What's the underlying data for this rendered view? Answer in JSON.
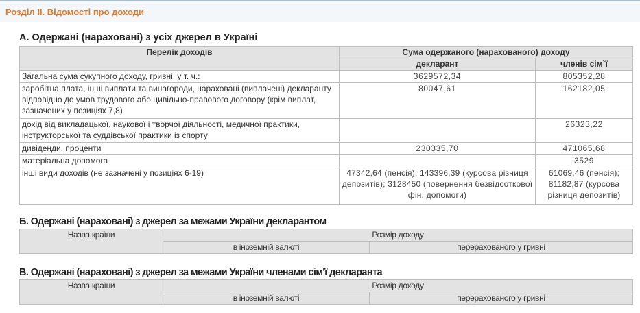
{
  "section_title": "Розділ ІІ. Відомості про доходи",
  "part_a": {
    "title": "А. Одержані (нараховані) з усіх джерел в Україні",
    "headers": {
      "list": "Перелік доходів",
      "sum": "Сума одержаного (нарахованого) доходу",
      "declarant": "декларант",
      "family": "членів сім`ї"
    },
    "rows": [
      {
        "label": "Загальна сума сукупного доходу, гривні, у т. ч.:",
        "declarant": "3629572,34",
        "family": "805352,28"
      },
      {
        "label": "заробітна плата, інші виплати та винагороди, нараховані (виплачені) декларанту відповідно до умов трудового або цивільно-правового договору (крім виплат, зазначених у позиціях 7,8)",
        "declarant": "80047,61",
        "family": "162182,05"
      },
      {
        "label": "дохід від викладацької, наукової і творчої діяльності, медичної практики, інструкторської та суддівської практики із спорту",
        "declarant": "",
        "family": "26323,22"
      },
      {
        "label": "дивіденди, проценти",
        "declarant": "230335,70",
        "family": "471065,68"
      },
      {
        "label": "матеріальна допомога",
        "declarant": "",
        "family": "3529"
      },
      {
        "label": "інші види доходів (не зазначені у позиціях 6-19)",
        "declarant": "47342,64 (пенсія); 143396,39 (курсова різниця депозитів); 3128450 (повернення безвідсоткової фін. допомоги)",
        "family": "61069,46 (пенсія); 81182,87 (курсова різниця депозитів)"
      }
    ]
  },
  "part_b": {
    "title": "Б. Одержані (нараховані) з джерел за межами України декларантом",
    "headers": {
      "country": "Назва країни",
      "amount": "Розмір доходу",
      "foreign": "в іноземній валюті",
      "uah": "перерахованого у гривні"
    }
  },
  "part_c": {
    "title": "В. Одержані (нараховані) з джерел за межами України членами сім'ї декларанта",
    "headers": {
      "country": "Назва країни",
      "amount": "Розмір доходу",
      "foreign": "в іноземній валюті",
      "uah": "перерахованого у гривні"
    }
  }
}
